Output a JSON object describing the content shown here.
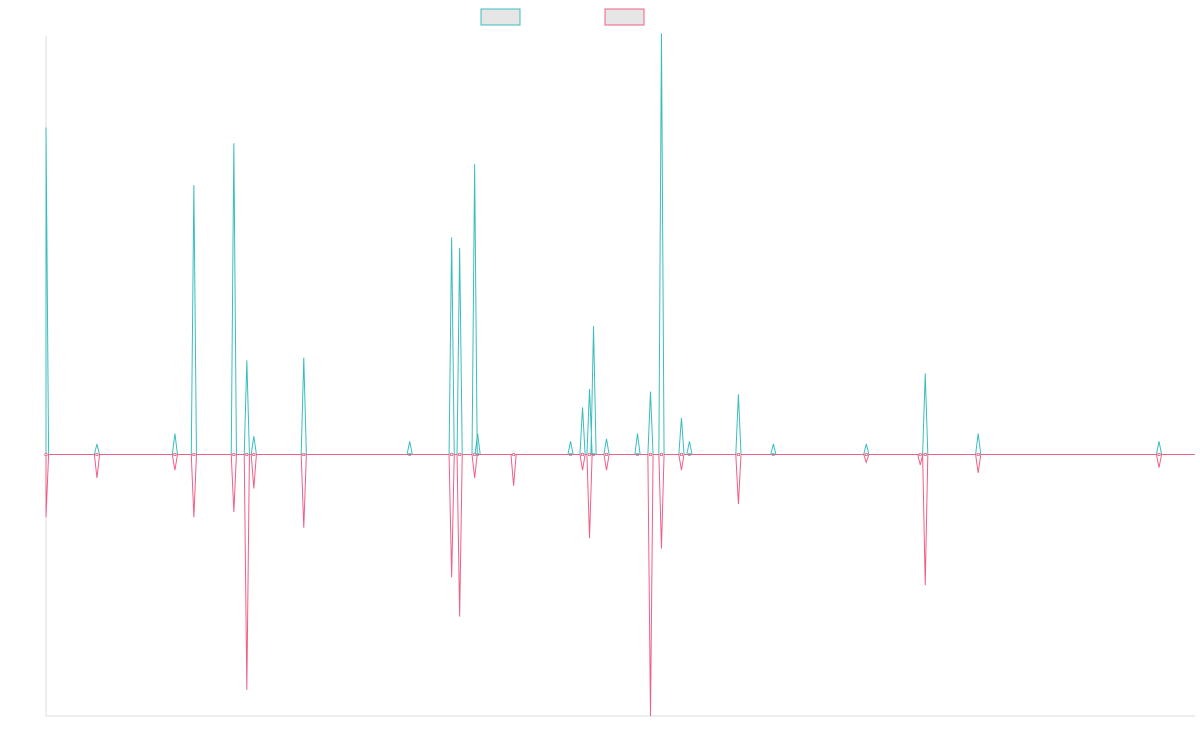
{
  "colors": {
    "teal": "#3bbdbd",
    "pink": "#ef5f86",
    "legend_fill": "#e6e6e6",
    "axis": "#dddddd",
    "background": "#ffffff"
  },
  "chart_data": {
    "type": "line",
    "title": "",
    "xlabel": "",
    "ylabel": "",
    "ylim": [
      -1.0,
      1.6
    ],
    "xlim": [
      0,
      1150
    ],
    "grid": false,
    "legend_position": "top-center",
    "legend": [
      {
        "color": "#3bbdbd"
      },
      {
        "color": "#ef5f86"
      }
    ],
    "series": [
      {
        "color": "#3bbdbd",
        "direction": 1,
        "spikes": [
          {
            "x": 0,
            "v": 1.25
          },
          {
            "x": 51,
            "v": 0.04
          },
          {
            "x": 129,
            "v": 0.08
          },
          {
            "x": 148,
            "v": 1.03
          },
          {
            "x": 188,
            "v": 1.19
          },
          {
            "x": 201,
            "v": 0.36
          },
          {
            "x": 208,
            "v": 0.07
          },
          {
            "x": 258,
            "v": 0.37
          },
          {
            "x": 364,
            "v": 0.05
          },
          {
            "x": 406,
            "v": 0.83
          },
          {
            "x": 414,
            "v": 0.79
          },
          {
            "x": 429,
            "v": 1.11
          },
          {
            "x": 432,
            "v": 0.08
          },
          {
            "x": 525,
            "v": 0.05
          },
          {
            "x": 537,
            "v": 0.18
          },
          {
            "x": 544,
            "v": 0.25
          },
          {
            "x": 548,
            "v": 0.49
          },
          {
            "x": 561,
            "v": 0.06
          },
          {
            "x": 592,
            "v": 0.08
          },
          {
            "x": 605,
            "v": 0.24
          },
          {
            "x": 616,
            "v": 1.61
          },
          {
            "x": 636,
            "v": 0.14
          },
          {
            "x": 644,
            "v": 0.05
          },
          {
            "x": 693,
            "v": 0.23
          },
          {
            "x": 728,
            "v": 0.04
          },
          {
            "x": 821,
            "v": 0.04
          },
          {
            "x": 880,
            "v": 0.31
          },
          {
            "x": 933,
            "v": 0.08
          },
          {
            "x": 1114,
            "v": 0.05
          }
        ]
      },
      {
        "color": "#ef5f86",
        "direction": -1,
        "spikes": [
          {
            "x": 0,
            "v": 0.24
          },
          {
            "x": 51,
            "v": 0.09
          },
          {
            "x": 129,
            "v": 0.06
          },
          {
            "x": 148,
            "v": 0.24
          },
          {
            "x": 188,
            "v": 0.22
          },
          {
            "x": 201,
            "v": 0.9
          },
          {
            "x": 208,
            "v": 0.13
          },
          {
            "x": 258,
            "v": 0.28
          },
          {
            "x": 406,
            "v": 0.47
          },
          {
            "x": 414,
            "v": 0.62
          },
          {
            "x": 429,
            "v": 0.09
          },
          {
            "x": 468,
            "v": 0.12
          },
          {
            "x": 537,
            "v": 0.06
          },
          {
            "x": 544,
            "v": 0.32
          },
          {
            "x": 561,
            "v": 0.06
          },
          {
            "x": 605,
            "v": 1.0
          },
          {
            "x": 616,
            "v": 0.36
          },
          {
            "x": 636,
            "v": 0.06
          },
          {
            "x": 693,
            "v": 0.19
          },
          {
            "x": 821,
            "v": 0.03
          },
          {
            "x": 875,
            "v": 0.04
          },
          {
            "x": 880,
            "v": 0.5
          },
          {
            "x": 933,
            "v": 0.07
          },
          {
            "x": 1114,
            "v": 0.05
          }
        ]
      }
    ]
  }
}
